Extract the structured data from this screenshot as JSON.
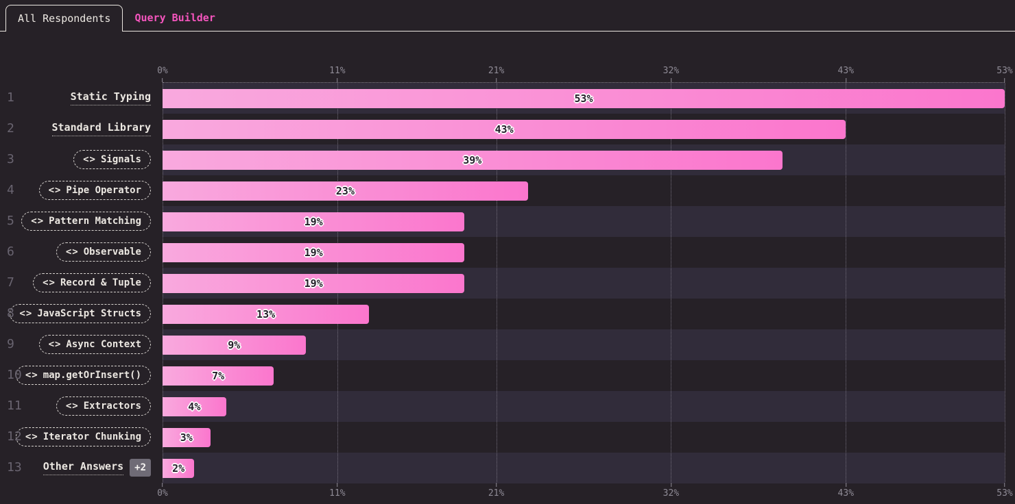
{
  "tabs": [
    {
      "label": "All Respondents",
      "active": true
    },
    {
      "label": "Query Builder",
      "active": false
    }
  ],
  "icons": {
    "code_glyph": "<>"
  },
  "colors": {
    "background": "#262127",
    "accent_pink": "#f455bd",
    "bar_gradient_start": "#f9a9de",
    "bar_gradient_end": "#fb76cd",
    "row_stripe": "#312c3a",
    "text_cream": "#ece8e2",
    "axis_text": "#8f8b96",
    "badge_bg": "#6f6b76"
  },
  "chart_data": {
    "type": "bar",
    "orientation": "horizontal",
    "xlim": [
      0,
      53
    ],
    "tick_values": [
      0,
      11,
      21,
      32,
      43,
      53
    ],
    "tick_labels": [
      "0%",
      "11%",
      "21%",
      "32%",
      "43%",
      "53%"
    ],
    "grid": "dotted-vertical",
    "categories": [
      "Static Typing",
      "Standard Library",
      "Signals",
      "Pipe Operator",
      "Pattern Matching",
      "Observable",
      "Record & Tuple",
      "JavaScript Structs",
      "Async Context",
      "map.getOrInsert()",
      "Extractors",
      "Iterator Chunking",
      "Other Answers"
    ],
    "values": [
      53,
      43,
      39,
      23,
      19,
      19,
      19,
      13,
      9,
      7,
      4,
      3,
      2
    ],
    "items": [
      {
        "rank": 1,
        "label": "Static Typing",
        "style": "underline",
        "value": 53,
        "display": "53%"
      },
      {
        "rank": 2,
        "label": "Standard Library",
        "style": "underline",
        "value": 43,
        "display": "43%"
      },
      {
        "rank": 3,
        "label": "Signals",
        "style": "pill",
        "value": 39,
        "display": "39%"
      },
      {
        "rank": 4,
        "label": "Pipe Operator",
        "style": "pill",
        "value": 23,
        "display": "23%"
      },
      {
        "rank": 5,
        "label": "Pattern Matching",
        "style": "pill",
        "value": 19,
        "display": "19%"
      },
      {
        "rank": 6,
        "label": "Observable",
        "style": "pill",
        "value": 19,
        "display": "19%"
      },
      {
        "rank": 7,
        "label": "Record & Tuple",
        "style": "pill",
        "value": 19,
        "display": "19%"
      },
      {
        "rank": 8,
        "label": "JavaScript Structs",
        "style": "pill",
        "value": 13,
        "display": "13%"
      },
      {
        "rank": 9,
        "label": "Async Context",
        "style": "pill",
        "value": 9,
        "display": "9%"
      },
      {
        "rank": 10,
        "label": "map.getOrInsert()",
        "style": "pill",
        "value": 7,
        "display": "7%"
      },
      {
        "rank": 11,
        "label": "Extractors",
        "style": "pill",
        "value": 4,
        "display": "4%"
      },
      {
        "rank": 12,
        "label": "Iterator Chunking",
        "style": "pill",
        "value": 3,
        "display": "3%"
      },
      {
        "rank": 13,
        "label": "Other Answers",
        "style": "underline",
        "value": 2,
        "display": "2%",
        "badge": "+2"
      }
    ]
  }
}
